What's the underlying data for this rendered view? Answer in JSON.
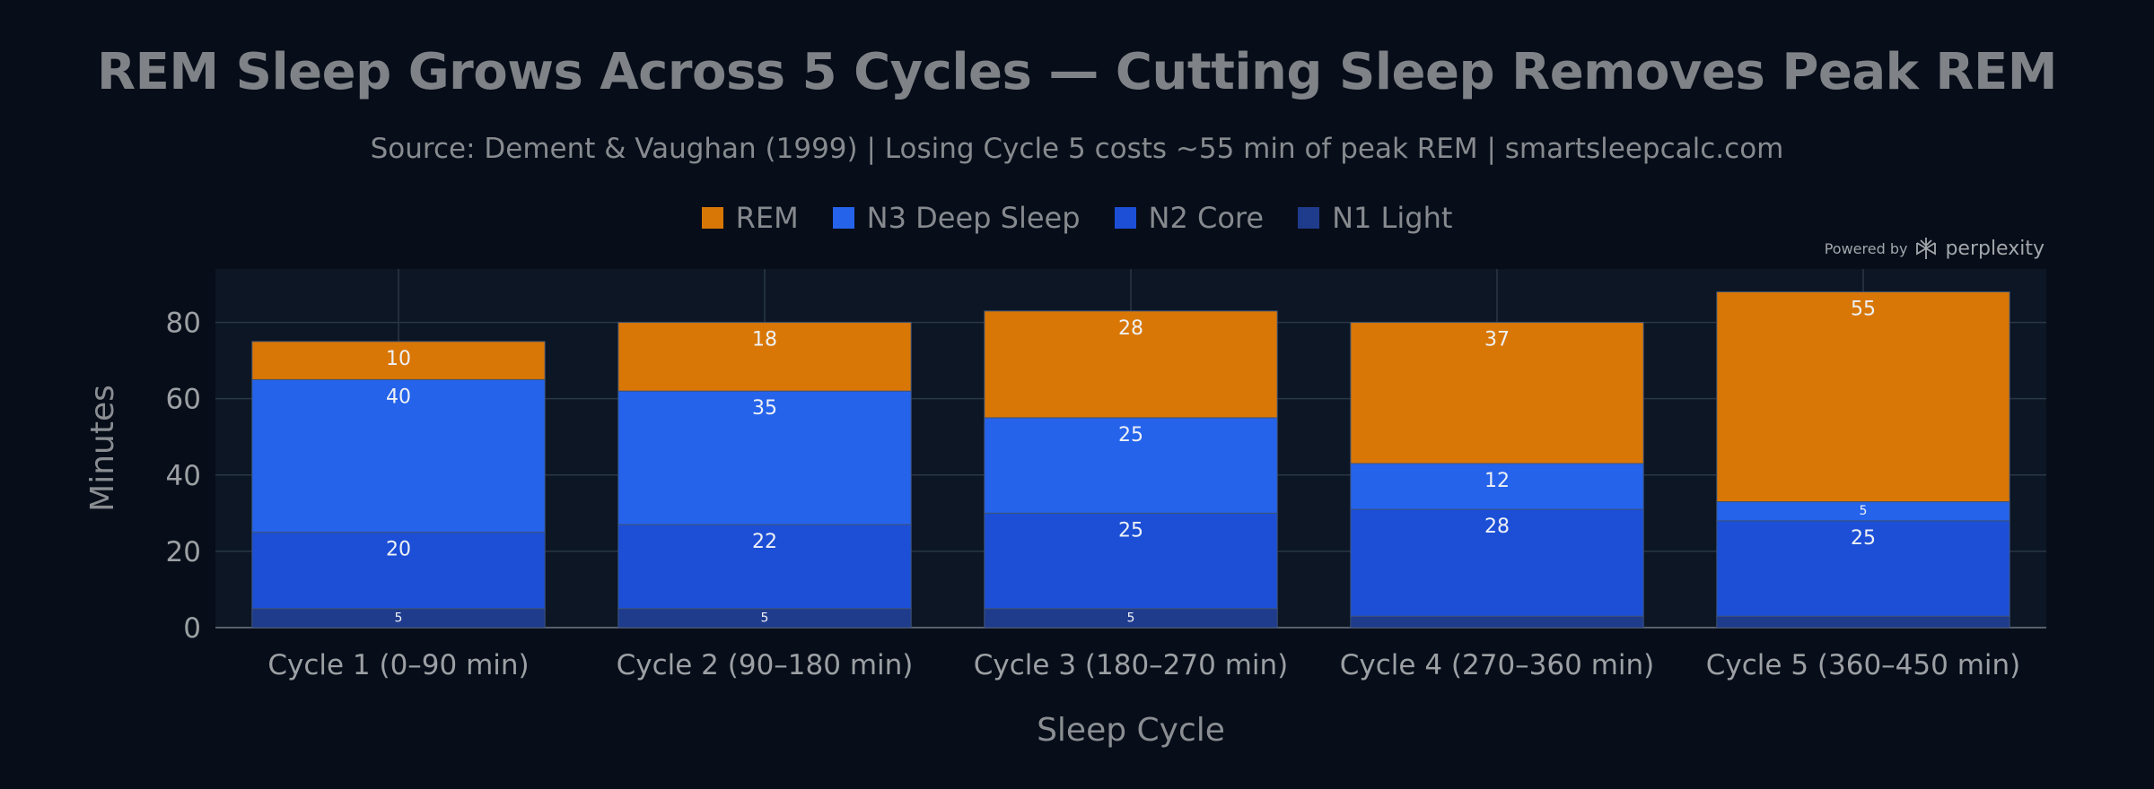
{
  "chart_data": {
    "type": "bar",
    "stacked": true,
    "title": "REM Sleep Grows Across 5 Cycles — Cutting Sleep Removes Peak REM",
    "subtitle": "Source: Dement & Vaughan (1999) | Losing Cycle 5 costs ~55 min of peak REM | smartsleepcalc.com",
    "xlabel": "Sleep Cycle",
    "ylabel": "Minutes",
    "ylim": [
      0,
      94
    ],
    "yticks": [
      0,
      20,
      40,
      60,
      80
    ],
    "grid": true,
    "legend_position": "top-center",
    "categories": [
      "Cycle 1 (0–90 min)",
      "Cycle 2 (90–180 min)",
      "Cycle 3 (180–270 min)",
      "Cycle 4 (270–360 min)",
      "Cycle 5 (360–450 min)"
    ],
    "series": [
      {
        "name": "N1 Light",
        "color": "#1f3b8c",
        "values": [
          5,
          5,
          5,
          3,
          3
        ],
        "labels": [
          "5",
          "5",
          "5",
          "",
          ""
        ]
      },
      {
        "name": "N2 Core",
        "color": "#1c4fd6",
        "values": [
          20,
          22,
          25,
          28,
          25
        ],
        "labels": [
          "20",
          "22",
          "25",
          "28",
          "25"
        ]
      },
      {
        "name": "N3 Deep Sleep",
        "color": "#2563eb",
        "values": [
          40,
          35,
          25,
          12,
          5
        ],
        "labels": [
          "40",
          "35",
          "25",
          "12",
          "5"
        ]
      },
      {
        "name": "REM",
        "color": "#d97706",
        "values": [
          10,
          18,
          28,
          37,
          55
        ],
        "labels": [
          "10",
          "18",
          "28",
          "37",
          "55"
        ]
      }
    ],
    "legend_order": [
      "REM",
      "N3 Deep Sleep",
      "N2 Core",
      "N1 Light"
    ]
  },
  "branding": {
    "prefix": "Powered by",
    "name": "perplexity"
  }
}
